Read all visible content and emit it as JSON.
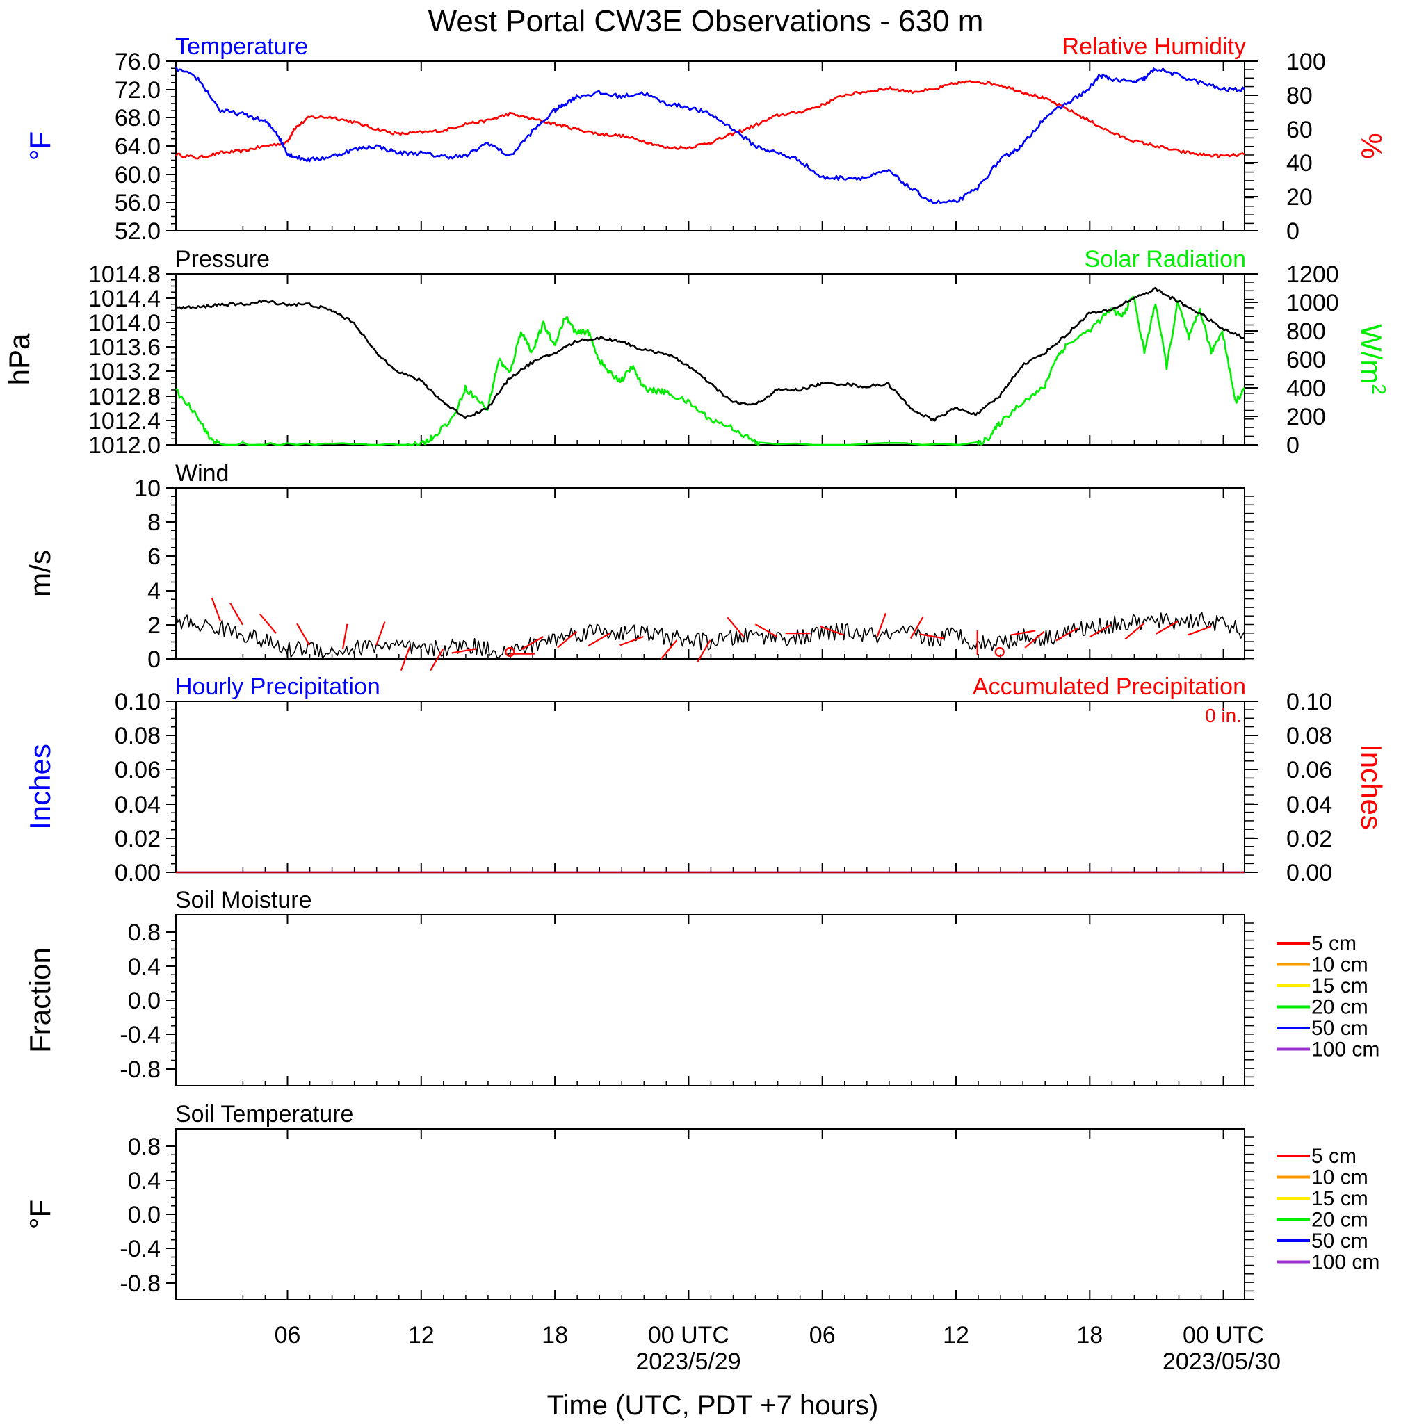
{
  "figure": {
    "title": "West Portal CW3E Observations - 630 m",
    "xlabel": "Time (UTC, PDT +7 hours)",
    "x_tick_labels": [
      "06",
      "12",
      "18",
      "00 UTC",
      "06",
      "12",
      "18",
      "00 UTC"
    ],
    "date_labels": [
      "2023/5/29",
      "2023/05/30"
    ]
  },
  "colors": {
    "temperature": "#0000ff",
    "humidity": "#ff0000",
    "pressure": "#000000",
    "solar": "#00ee00",
    "wind": "#000000",
    "wind_barb": "#ff0000",
    "precip_hourly": "#0000ff",
    "precip_accum": "#cc0000",
    "depth_5cm": "#ff0000",
    "depth_10cm": "#ff9900",
    "depth_15cm": "#ffee00",
    "depth_20cm": "#00ee00",
    "depth_50cm": "#0000ff",
    "depth_100cm": "#9933cc"
  },
  "chart_data": [
    {
      "type": "line",
      "panel": "temperature-humidity",
      "title_left": "Temperature",
      "title_right": "Relative Humidity",
      "ylabel_left": "°F",
      "ylabel_right": "%",
      "x_units": "hours since 2023-05-28 01 UTC",
      "xlim": [
        0,
        48
      ],
      "ylim_left": [
        52,
        76
      ],
      "ylim_right": [
        0,
        100
      ],
      "yticks_left": [
        "76.0",
        "72.0",
        "68.0",
        "64.0",
        "60.0",
        "56.0",
        "52.0"
      ],
      "yticks_right": [
        "100",
        "80",
        "60",
        "40",
        "20",
        "0"
      ],
      "series": [
        {
          "name": "Temperature",
          "axis": "left",
          "color_key": "temperature",
          "x": [
            0,
            1,
            2,
            3,
            4,
            4.5,
            5,
            5.3,
            6,
            7,
            8,
            9,
            10,
            11,
            12,
            13,
            14,
            15,
            16,
            17,
            17.5,
            18,
            19,
            20,
            21,
            22,
            23,
            24,
            25,
            26,
            27,
            28,
            29,
            30,
            31,
            32,
            33,
            34,
            35,
            36,
            37,
            37.5,
            38,
            39,
            40,
            41,
            41.5,
            42,
            43,
            43.5,
            44,
            45,
            46,
            47,
            48
          ],
          "y": [
            75,
            73.5,
            69,
            68.5,
            67.5,
            66,
            63,
            62.5,
            62,
            62.5,
            63.5,
            64,
            63,
            63,
            62.5,
            62.5,
            64.5,
            62.5,
            66,
            69,
            70,
            71,
            71.5,
            71,
            71.5,
            70,
            69.5,
            68.5,
            66.5,
            64,
            63,
            62,
            59.5,
            59.5,
            59.5,
            60.5,
            58,
            56,
            56,
            58,
            62,
            63,
            64,
            68,
            70,
            72,
            74,
            73.5,
            73,
            73.5,
            75,
            74,
            73,
            72,
            72
          ]
        },
        {
          "name": "Relative Humidity",
          "axis": "right",
          "color_key": "humidity",
          "x": [
            0,
            1,
            2,
            3,
            4,
            5,
            5.3,
            6,
            7,
            8,
            9,
            10,
            11,
            12,
            13,
            14,
            15,
            16,
            17,
            18,
            19,
            20,
            21,
            22,
            23,
            24,
            25,
            26,
            27,
            28,
            29,
            30,
            31,
            32,
            33,
            34,
            35,
            36,
            37,
            38,
            39,
            40,
            41,
            42,
            43,
            44,
            45,
            46,
            47,
            48
          ],
          "y": [
            45,
            43,
            46,
            47,
            50,
            52,
            60,
            67,
            67,
            64,
            60,
            57,
            58,
            59,
            63,
            65,
            69,
            66,
            63,
            60,
            57,
            56,
            53,
            49,
            49,
            52,
            57,
            62,
            68,
            70,
            74,
            80,
            82,
            84,
            82,
            83,
            87,
            88,
            86,
            82,
            78,
            72,
            65,
            58,
            53,
            50,
            47,
            45,
            44,
            45
          ]
        }
      ]
    },
    {
      "type": "line",
      "panel": "pressure-solar",
      "title_left": "Pressure",
      "title_right": "Solar Radiation",
      "ylabel_left": "hPa",
      "ylabel_right": "W/m",
      "ylabel_right_sup": "2",
      "x_units": "hours since 2023-05-28 01 UTC",
      "xlim": [
        0,
        48
      ],
      "ylim_left": [
        1012.0,
        1014.8
      ],
      "ylim_right": [
        0,
        1200
      ],
      "yticks_left": [
        "1014.8",
        "1014.4",
        "1014.0",
        "1013.6",
        "1013.2",
        "1012.8",
        "1012.4",
        "1012.0"
      ],
      "yticks_right": [
        "1200",
        "1000",
        "800",
        "600",
        "400",
        "200",
        "0"
      ],
      "series": [
        {
          "name": "Pressure",
          "axis": "left",
          "color_key": "pressure",
          "x": [
            0,
            1,
            2,
            3,
            4,
            5,
            6,
            7,
            8,
            9,
            10,
            11,
            12,
            13,
            14,
            15,
            16,
            17,
            18,
            19,
            20,
            21,
            22,
            23,
            24,
            25,
            26,
            27,
            28,
            29,
            30,
            31,
            32,
            33,
            34,
            35,
            36,
            37,
            38,
            39,
            40,
            41,
            42,
            43,
            44,
            45,
            46,
            47,
            48
          ],
          "y": [
            1014.25,
            1014.25,
            1014.3,
            1014.3,
            1014.35,
            1014.3,
            1014.3,
            1014.2,
            1014.0,
            1013.5,
            1013.2,
            1013.05,
            1012.7,
            1012.45,
            1012.6,
            1013.1,
            1013.35,
            1013.5,
            1013.7,
            1013.75,
            1013.7,
            1013.55,
            1013.5,
            1013.3,
            1013.0,
            1012.7,
            1012.65,
            1012.9,
            1012.9,
            1013.0,
            1013.0,
            1012.95,
            1013.0,
            1012.6,
            1012.4,
            1012.6,
            1012.5,
            1012.8,
            1013.3,
            1013.5,
            1013.8,
            1014.15,
            1014.2,
            1014.4,
            1014.55,
            1014.35,
            1014.15,
            1013.9,
            1013.75
          ]
        },
        {
          "name": "Solar Radiation",
          "axis": "right",
          "color_key": "solar",
          "x": [
            0,
            1,
            1.5,
            2,
            5,
            10,
            11,
            11.5,
            12.5,
            13,
            14,
            14.5,
            15,
            15.5,
            16,
            16.5,
            17,
            17.5,
            18,
            18.5,
            19,
            19.5,
            20,
            20.5,
            21,
            21.5,
            22,
            23,
            24,
            25,
            26,
            26.2,
            36,
            36.5,
            37,
            38,
            39,
            39.5,
            40,
            41,
            42,
            42.5,
            43,
            43.5,
            44,
            44.5,
            45,
            45.5,
            46,
            46.5,
            47,
            47.3,
            47.6,
            48
          ],
          "y": [
            380,
            200,
            50,
            0,
            0,
            0,
            0,
            50,
            200,
            400,
            250,
            600,
            500,
            800,
            650,
            850,
            700,
            900,
            780,
            800,
            600,
            500,
            450,
            550,
            400,
            380,
            370,
            300,
            180,
            120,
            20,
            0,
            0,
            50,
            150,
            300,
            400,
            600,
            700,
            800,
            950,
            900,
            1050,
            650,
            1000,
            550,
            1000,
            750,
            950,
            650,
            800,
            550,
            300,
            400
          ]
        }
      ]
    },
    {
      "type": "line",
      "panel": "wind",
      "title_left": "Wind",
      "ylabel_left": "m/s",
      "x_units": "hours since 2023-05-28 01 UTC",
      "xlim": [
        0,
        48
      ],
      "ylim_left": [
        0,
        10
      ],
      "yticks_left": [
        "10",
        "8",
        "6",
        "4",
        "2",
        "0"
      ],
      "series": [
        {
          "name": "Wind speed",
          "color_key": "wind",
          "x": [
            0,
            1,
            2,
            3,
            4,
            5,
            6,
            7,
            8,
            9,
            10,
            11,
            12,
            13,
            14,
            15,
            16,
            17,
            18,
            19,
            20,
            21,
            22,
            23,
            24,
            25,
            26,
            27,
            28,
            29,
            30,
            31,
            32,
            33,
            34,
            35,
            36,
            37,
            38,
            39,
            40,
            41,
            42,
            43,
            44,
            45,
            46,
            47,
            48
          ],
          "y": [
            2.2,
            2.0,
            1.8,
            1.5,
            1.0,
            0.5,
            0.7,
            0.4,
            0.6,
            0.8,
            0.7,
            0.5,
            0.6,
            0.8,
            0.6,
            0.4,
            0.8,
            1.2,
            1.5,
            1.7,
            1.5,
            1.5,
            1.3,
            1.1,
            1.0,
            1.2,
            1.4,
            1.3,
            1.2,
            1.5,
            1.6,
            1.4,
            1.3,
            1.5,
            1.1,
            1.5,
            0.9,
            1.0,
            1.3,
            1.2,
            1.6,
            1.8,
            2.0,
            2.1,
            2.2,
            2.2,
            2.3,
            2.0,
            1.6
          ]
        }
      ],
      "wind_barbs": {
        "color_key": "wind_barb",
        "x": [
          2,
          3,
          4.5,
          6,
          7.5,
          9,
          10.5,
          12,
          13.5,
          15,
          16.5,
          18,
          19.5,
          21,
          22.5,
          24,
          25.5,
          27,
          28.5,
          30,
          31.5,
          33,
          34.5,
          36,
          37.5,
          39,
          40.5,
          42,
          43.5,
          45,
          46.5
        ],
        "speed": [
          2.2,
          2.0,
          1.5,
          0.8,
          0.6,
          0.8,
          0.7,
          0.6,
          0.6,
          0.3,
          1.3,
          1.6,
          1.5,
          1.3,
          1.1,
          1.1,
          1.3,
          1.3,
          1.5,
          1.4,
          1.3,
          1.2,
          1.2,
          0.2,
          1.4,
          1.6,
          1.8,
          2.0,
          2.1,
          2.2,
          1.9
        ],
        "dir_deg": [
          340,
          330,
          320,
          330,
          10,
          20,
          200,
          210,
          260,
          90,
          240,
          230,
          240,
          250,
          220,
          210,
          320,
          300,
          270,
          290,
          20,
          30,
          280,
          0,
          80,
          230,
          240,
          240,
          230,
          240,
          250
        ],
        "calm_x": [
          15,
          37
        ]
      }
    },
    {
      "type": "line",
      "panel": "precipitation",
      "title_left": "Hourly Precipitation",
      "title_right": "Accumulated Precipitation",
      "annotation": "0 in.",
      "ylabel_left": "Inches",
      "ylabel_right": "Inches",
      "x_units": "hours since 2023-05-28 01 UTC",
      "xlim": [
        0,
        48
      ],
      "ylim_left": [
        0,
        0.1
      ],
      "ylim_right": [
        0,
        0.1
      ],
      "yticks_left": [
        "0.10",
        "0.08",
        "0.06",
        "0.04",
        "0.02",
        "0.00"
      ],
      "yticks_right": [
        "0.10",
        "0.08",
        "0.06",
        "0.04",
        "0.02",
        "0.00"
      ],
      "series": [
        {
          "name": "Hourly Precipitation",
          "color_key": "precip_hourly",
          "x": [
            0,
            48
          ],
          "y": [
            0,
            0
          ]
        },
        {
          "name": "Accumulated Precipitation",
          "color_key": "precip_accum",
          "x": [
            0,
            48
          ],
          "y": [
            0,
            0
          ]
        }
      ]
    },
    {
      "type": "line",
      "panel": "soil-moisture",
      "title_left": "Soil Moisture",
      "ylabel_left": "Fraction",
      "xlim": [
        0,
        48
      ],
      "ylim_left": [
        -1,
        1
      ],
      "yticks_left": [
        "0.8",
        "0.4",
        "0.0",
        "-0.4",
        "-0.8"
      ],
      "legend_position": "right",
      "legend": [
        "5 cm",
        "10 cm",
        "15 cm",
        "20 cm",
        "50 cm",
        "100 cm"
      ],
      "legend_color_keys": [
        "depth_5cm",
        "depth_10cm",
        "depth_15cm",
        "depth_20cm",
        "depth_50cm",
        "depth_100cm"
      ],
      "series": []
    },
    {
      "type": "line",
      "panel": "soil-temperature",
      "title_left": "Soil Temperature",
      "ylabel_left": "°F",
      "xlim": [
        0,
        48
      ],
      "ylim_left": [
        -1,
        1
      ],
      "yticks_left": [
        "0.8",
        "0.4",
        "0.0",
        "-0.4",
        "-0.8"
      ],
      "legend_position": "right",
      "legend": [
        "5 cm",
        "10 cm",
        "15 cm",
        "20 cm",
        "50 cm",
        "100 cm"
      ],
      "legend_color_keys": [
        "depth_5cm",
        "depth_10cm",
        "depth_15cm",
        "depth_20cm",
        "depth_50cm",
        "depth_100cm"
      ],
      "series": []
    }
  ]
}
